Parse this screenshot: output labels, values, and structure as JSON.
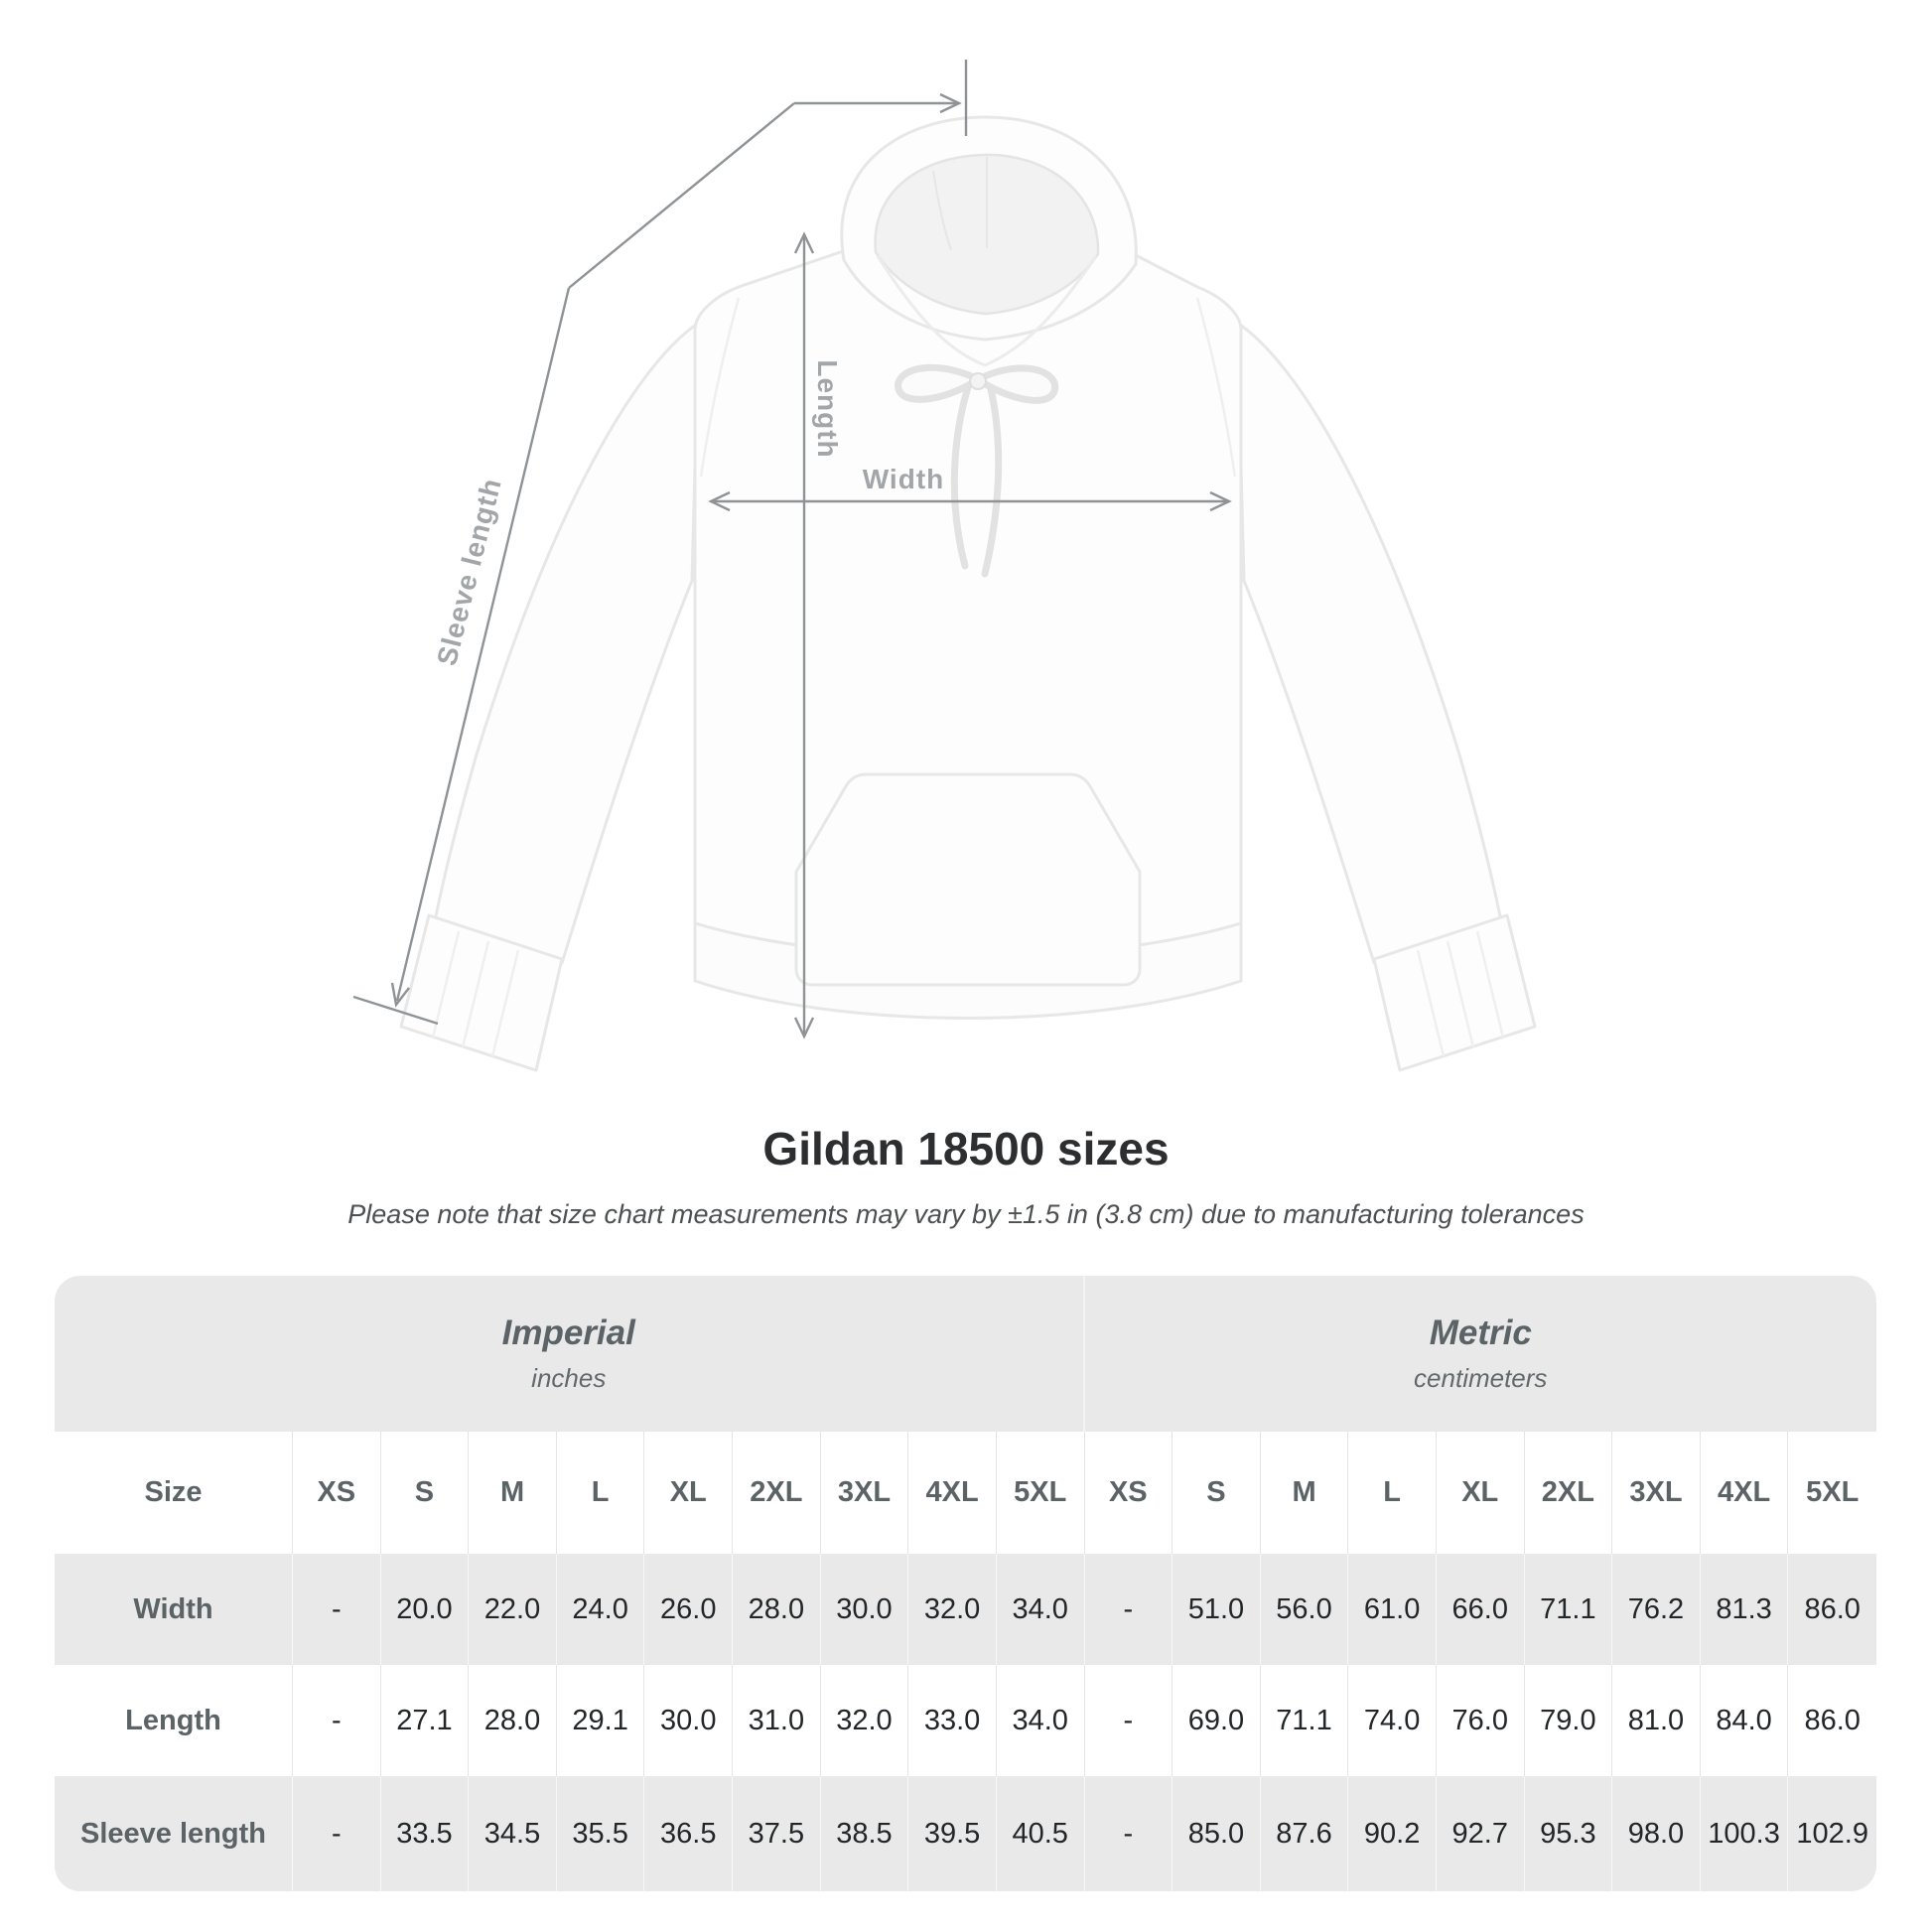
{
  "diagram": {
    "length_label": "Length",
    "width_label": "Width",
    "sleeve_label": "Sleeve length"
  },
  "heading": {
    "title": "Gildan 18500 sizes",
    "subtitle": "Please note that size chart measurements may vary by ±1.5 in (3.8 cm) due to manufacturing tolerances"
  },
  "table": {
    "groups": [
      {
        "name": "Imperial",
        "unit": "inches"
      },
      {
        "name": "Metric",
        "unit": "centimeters"
      }
    ],
    "size_header": "Size",
    "sizes": [
      "XS",
      "S",
      "M",
      "L",
      "XL",
      "2XL",
      "3XL",
      "4XL",
      "5XL"
    ],
    "rows": [
      {
        "label": "Width",
        "imperial": [
          "-",
          "20.0",
          "22.0",
          "24.0",
          "26.0",
          "28.0",
          "30.0",
          "32.0",
          "34.0"
        ],
        "metric": [
          "-",
          "51.0",
          "56.0",
          "61.0",
          "66.0",
          "71.1",
          "76.2",
          "81.3",
          "86.0"
        ]
      },
      {
        "label": "Length",
        "imperial": [
          "-",
          "27.1",
          "28.0",
          "29.1",
          "30.0",
          "31.0",
          "32.0",
          "33.0",
          "34.0"
        ],
        "metric": [
          "-",
          "69.0",
          "71.1",
          "74.0",
          "76.0",
          "79.0",
          "81.0",
          "84.0",
          "86.0"
        ]
      },
      {
        "label": "Sleeve length",
        "imperial": [
          "-",
          "33.5",
          "34.5",
          "35.5",
          "36.5",
          "37.5",
          "38.5",
          "39.5",
          "40.5"
        ],
        "metric": [
          "-",
          "85.0",
          "87.6",
          "90.2",
          "92.7",
          "95.3",
          "98.0",
          "100.3",
          "102.9"
        ]
      }
    ]
  },
  "colors": {
    "table_band": "#e9e9e9",
    "measure_line": "#8f9396",
    "dim_label_text": "#a2a6a9",
    "header_text": "#5b6367",
    "value_text": "#232628"
  }
}
